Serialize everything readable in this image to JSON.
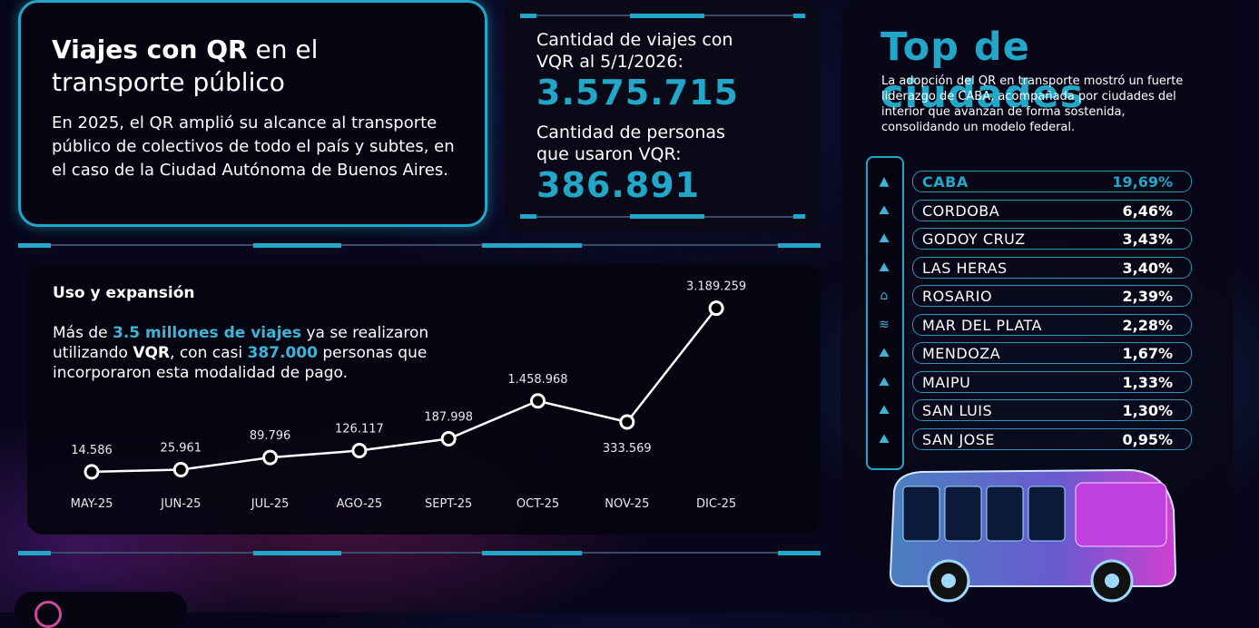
{
  "intro": {
    "title_bold": "Viajes con QR",
    "title_rest": " en el",
    "title_line2": "transporte público",
    "text": "En 2025, el QR amplió su alcance al transporte público de colectivos de todo el país y subtes, en el caso de la Ciudad Autónoma de Buenos Aires."
  },
  "stats": {
    "trips_label": "Cantidad de viajes con VQR al 5/1/2026:",
    "trips_value": "3.575.715",
    "people_label": "Cantidad de personas que usaron VQR:",
    "people_value": "386.891"
  },
  "usage": {
    "title": "Uso y expansión",
    "desc_1": "Más de ",
    "desc_hl1": "3.5 millones de viajes",
    "desc_2": " ya se realizaron utilizando ",
    "desc_b": "VQR",
    "desc_3": ", con casi ",
    "desc_hl2": "387.000",
    "desc_4": " personas que incorporaron esta modalidad de pago."
  },
  "chart_data": {
    "type": "line",
    "categories": [
      "MAY-25",
      "JUN-25",
      "JUL-25",
      "AGO-25",
      "SEPT-25",
      "OCT-25",
      "NOV-25",
      "DIC-25"
    ],
    "values": [
      14586,
      25961,
      89796,
      126117,
      187998,
      1458968,
      333569,
      3189259
    ],
    "data_labels": [
      "14.586",
      "25.961",
      "89.796",
      "126.117",
      "187.998",
      "1.458.968",
      "333.569",
      "3.189.259"
    ],
    "title": "Uso y expansión",
    "xlabel": "",
    "ylabel": "",
    "colors": {
      "line": "#ffffff",
      "marker_fill": "#000000",
      "marker_stroke": "#ffffff"
    }
  },
  "top_cities": {
    "title": "Top de ciudades",
    "desc": "La adopción del QR en transporte mostró un fuerte liderazgo de CABA, acompañada por ciudades del interior que avanzan de forma sostenida, consolidando un modelo federal.",
    "items": [
      {
        "name": "CABA",
        "value": "19,69%",
        "icon": "obelisk-icon"
      },
      {
        "name": "CORDOBA",
        "value": "6,46%",
        "icon": "mountain-icon"
      },
      {
        "name": "GODOY CRUZ",
        "value": "3,43%",
        "icon": "mountain-icon"
      },
      {
        "name": "LAS HERAS",
        "value": "3,40%",
        "icon": "mountain-icon"
      },
      {
        "name": "ROSARIO",
        "value": "2,39%",
        "icon": "monument-icon"
      },
      {
        "name": "MAR DEL PLATA",
        "value": "2,28%",
        "icon": "sunset-sea-icon"
      },
      {
        "name": "MENDOZA",
        "value": "1,67%",
        "icon": "mountain-icon"
      },
      {
        "name": "MAIPU",
        "value": "1,33%",
        "icon": "mountain-icon"
      },
      {
        "name": "SAN LUIS",
        "value": "1,30%",
        "icon": "mountain-icon"
      },
      {
        "name": "SAN JOSE",
        "value": "0,95%",
        "icon": "mountain-icon"
      }
    ]
  },
  "colors": {
    "accent": "#22a7c9",
    "background": "#07061a"
  }
}
